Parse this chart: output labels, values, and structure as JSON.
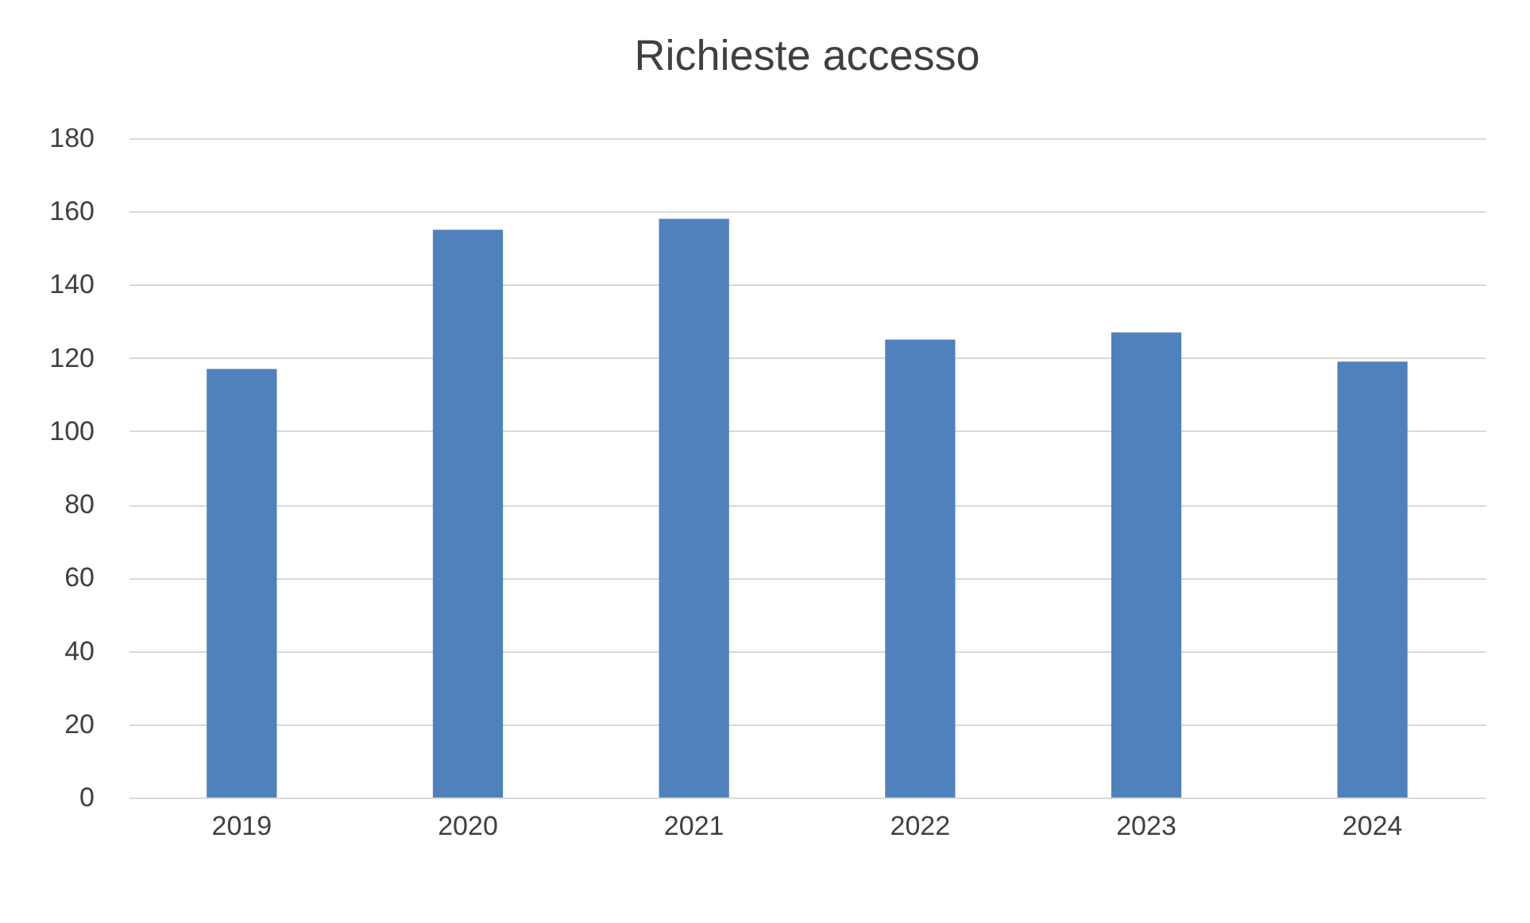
{
  "chart_data": {
    "type": "bar",
    "title": "Richieste accesso",
    "categories": [
      "2019",
      "2020",
      "2021",
      "2022",
      "2023",
      "2024"
    ],
    "values": [
      117,
      155,
      158,
      125,
      127,
      119
    ],
    "color": "#4f81bd",
    "ylim": [
      0,
      180
    ],
    "yticks": [
      0,
      20,
      40,
      60,
      80,
      100,
      120,
      140,
      160,
      180
    ],
    "grid": "y"
  }
}
